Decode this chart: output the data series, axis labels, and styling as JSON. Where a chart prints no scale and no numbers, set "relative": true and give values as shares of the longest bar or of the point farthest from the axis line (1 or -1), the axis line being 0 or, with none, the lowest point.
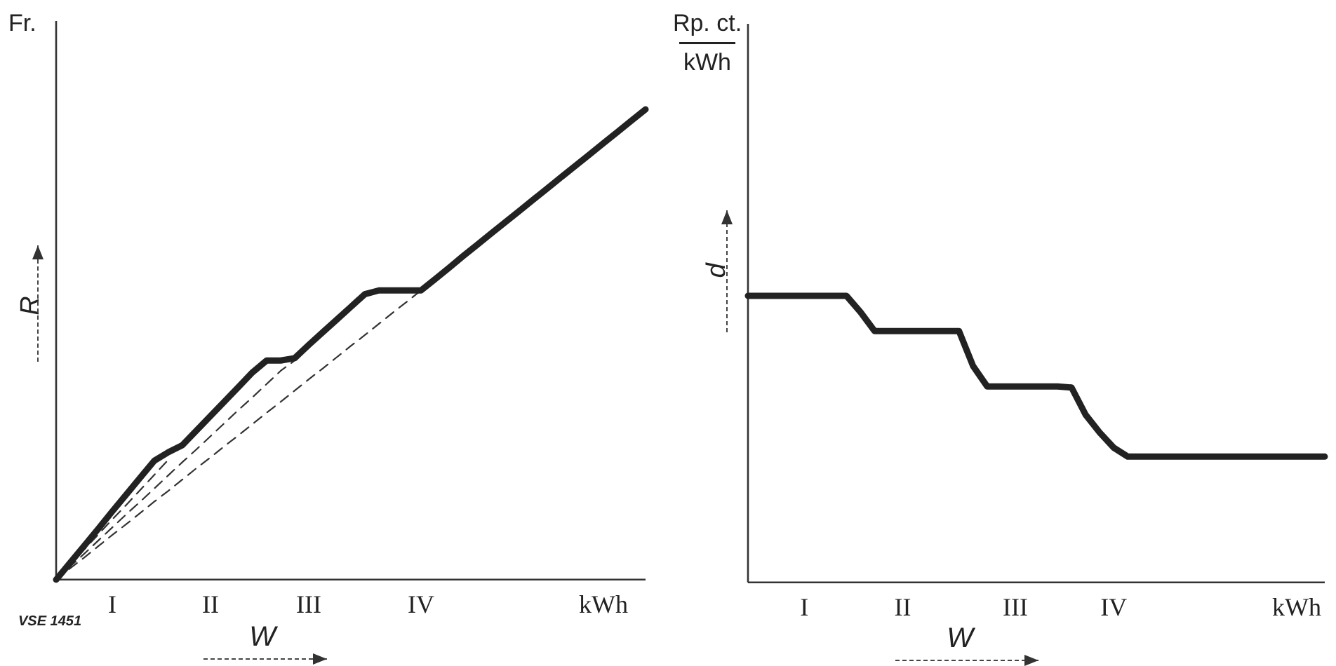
{
  "chart_data": [
    {
      "type": "line",
      "relative": true,
      "ylabel": "R",
      "xlabel": "W",
      "tick_labels": "x",
      "marker": "none",
      "legend": false,
      "grid": false,
      "annotations": [
        "Fr.",
        "VSE 1451"
      ],
      "categories": [
        null,
        null,
        null,
        null,
        "I",
        null,
        null,
        null,
        null,
        null,
        null,
        "II",
        null,
        null,
        null,
        null,
        null,
        null,
        "III",
        null,
        null,
        null,
        null,
        null,
        null,
        null,
        "IV",
        null,
        null,
        null,
        null,
        null,
        null,
        null,
        null,
        null,
        null,
        null,
        null,
        "kWh",
        null,
        null,
        null
      ],
      "series": [
        {
          "color": "#222222",
          "line_style": "solid",
          "values": [
            0,
            0.036,
            0.072,
            0.108,
            0.145,
            0.181,
            0.217,
            0.253,
            0.271,
            0.286,
            0.317,
            0.348,
            0.379,
            0.41,
            0.441,
            0.466,
            0.466,
            0.471,
            0.499,
            0.526,
            0.553,
            0.58,
            0.607,
            0.615,
            0.615,
            0.615,
            0.615,
            0.639,
            0.663,
            0.688,
            0.712,
            0.736,
            0.76,
            0.784,
            0.808,
            0.832,
            0.856,
            0.88,
            0.904,
            0.928,
            0.952,
            0.976,
            1
          ]
        },
        {
          "color": "#333333",
          "line_style": "dashed",
          "values": [
            0,
            0.032,
            0.064,
            0.096,
            0.128,
            0.159,
            0.191,
            0.223,
            0.255,
            null,
            null,
            null,
            null,
            null,
            null,
            null,
            null,
            null,
            null,
            null,
            null,
            null,
            null,
            null,
            null,
            null,
            null,
            null,
            null,
            null,
            null,
            null,
            null,
            null,
            null,
            null,
            null,
            null,
            null,
            null,
            null,
            null,
            null
          ]
        },
        {
          "color": "#333333",
          "line_style": "dashed",
          "values": [
            0,
            0.028,
            0.055,
            0.083,
            0.111,
            0.139,
            0.166,
            0.194,
            0.222,
            0.25,
            0.277,
            0.305,
            0.333,
            0.361,
            0.388,
            0.416,
            0.444,
            0.466,
            null,
            null,
            null,
            null,
            null,
            null,
            null,
            null,
            null,
            null,
            null,
            null,
            null,
            null,
            null,
            null,
            null,
            null,
            null,
            null,
            null,
            null,
            null,
            null,
            null
          ]
        },
        {
          "color": "#333333",
          "line_style": "dashed",
          "values": [
            0,
            0.024,
            0.047,
            0.071,
            0.095,
            0.118,
            0.142,
            0.166,
            0.189,
            0.213,
            0.237,
            0.26,
            0.284,
            0.307,
            0.331,
            0.355,
            0.378,
            0.402,
            0.426,
            0.449,
            0.473,
            0.497,
            0.52,
            0.544,
            0.568,
            0.591,
            0.615,
            null,
            null,
            null,
            null,
            null,
            null,
            null,
            null,
            null,
            null,
            null,
            null,
            null,
            null,
            null,
            null
          ]
        }
      ]
    },
    {
      "type": "line",
      "relative": true,
      "ylabel": "d",
      "xlabel": "W",
      "tick_labels": "x",
      "marker": "none",
      "legend": false,
      "grid": false,
      "annotations": [
        "Rp. ct.",
        "kWh"
      ],
      "categories": [
        null,
        null,
        null,
        null,
        "I",
        null,
        null,
        null,
        null,
        null,
        null,
        "II",
        null,
        null,
        null,
        null,
        null,
        null,
        null,
        "III",
        null,
        null,
        null,
        null,
        null,
        null,
        "IV",
        null,
        null,
        null,
        null,
        null,
        null,
        null,
        null,
        null,
        null,
        null,
        null,
        "kWh",
        null,
        null
      ],
      "series": [
        {
          "color": "#222222",
          "line_style": "solid",
          "values": [
            1,
            1,
            1,
            1,
            1,
            1,
            1,
            1,
            0.943,
            0.877,
            0.877,
            0.877,
            0.877,
            0.877,
            0.877,
            0.877,
            0.755,
            0.684,
            0.684,
            0.684,
            0.684,
            0.684,
            0.684,
            0.68,
            0.585,
            0.523,
            0.47,
            0.439,
            0.439,
            0.439,
            0.439,
            0.439,
            0.439,
            0.439,
            0.439,
            0.439,
            0.439,
            0.439,
            0.439,
            0.439,
            0.439,
            0.439
          ]
        }
      ]
    }
  ]
}
